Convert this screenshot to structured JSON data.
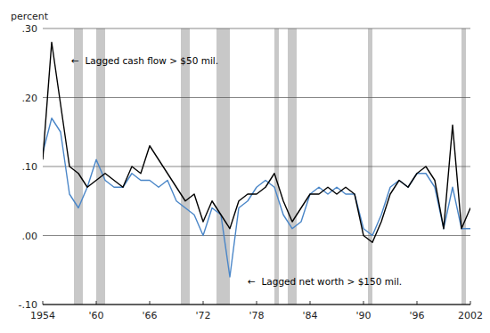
{
  "chart_data": {
    "type": "line",
    "x": [
      1954,
      1955,
      1956,
      1957,
      1958,
      1959,
      1960,
      1961,
      1962,
      1963,
      1964,
      1965,
      1966,
      1967,
      1968,
      1969,
      1970,
      1971,
      1972,
      1973,
      1974,
      1975,
      1976,
      1977,
      1978,
      1979,
      1980,
      1981,
      1982,
      1983,
      1984,
      1985,
      1986,
      1987,
      1988,
      1989,
      1990,
      1991,
      1992,
      1993,
      1994,
      1995,
      1996,
      1997,
      1998,
      1999,
      2000,
      2001,
      2002
    ],
    "series": [
      {
        "color": "#4a86c8",
        "values": [
          0.12,
          0.17,
          0.15,
          0.06,
          0.04,
          0.07,
          0.11,
          0.08,
          0.07,
          0.07,
          0.09,
          0.08,
          0.08,
          0.07,
          0.08,
          0.05,
          0.04,
          0.03,
          0.0,
          0.04,
          0.03,
          -0.06,
          0.04,
          0.05,
          0.07,
          0.08,
          0.07,
          0.03,
          0.01,
          0.02,
          0.06,
          0.07,
          0.06,
          0.07,
          0.06,
          0.06,
          0.01,
          0.0,
          0.03,
          0.07,
          0.08,
          0.07,
          0.09,
          0.09,
          0.07,
          0.01,
          0.07,
          0.01,
          0.01
        ]
      },
      {
        "color": "#000000",
        "values": [
          0.11,
          0.28,
          0.19,
          0.1,
          0.09,
          0.07,
          0.08,
          0.09,
          0.08,
          0.07,
          0.1,
          0.09,
          0.13,
          0.11,
          0.09,
          0.07,
          0.05,
          0.06,
          0.02,
          0.05,
          0.03,
          0.01,
          0.05,
          0.06,
          0.06,
          0.07,
          0.09,
          0.05,
          0.02,
          0.04,
          0.06,
          0.06,
          0.07,
          0.06,
          0.07,
          0.06,
          0.0,
          -0.01,
          0.02,
          0.06,
          0.08,
          0.07,
          0.09,
          0.1,
          0.08,
          0.01,
          0.16,
          0.01,
          0.04
        ]
      }
    ],
    "bands": {
      "color": "#c8c8c8",
      "ranges": [
        [
          1957.5,
          1958.5
        ],
        [
          1960.0,
          1961.0
        ],
        [
          1969.5,
          1970.5
        ],
        [
          1973.5,
          1975.0
        ],
        [
          1980.0,
          1980.5
        ],
        [
          1981.5,
          1982.5
        ],
        [
          1990.5,
          1991.0
        ],
        [
          2001.0,
          2001.5
        ]
      ]
    },
    "annotations": [
      {
        "x": 1957.2,
        "y": 0.252,
        "text": "←  Lagged cash flow > $50 mil."
      },
      {
        "x": 1977.0,
        "y": -0.068,
        "text": "←  Lagged net worth > $150 mil."
      }
    ],
    "ylabel": "percent",
    "ylim": [
      -0.1,
      0.3
    ],
    "yticks": [
      {
        "value": -0.1,
        "label": "-.10"
      },
      {
        "value": 0.0,
        "label": ".00"
      },
      {
        "value": 0.1,
        "label": ".10"
      },
      {
        "value": 0.2,
        "label": ".20"
      },
      {
        "value": 0.3,
        "label": ".30"
      }
    ],
    "xlim": [
      1954,
      2002
    ],
    "xticks": [
      1954,
      {
        "value": 1960,
        "label": "'60"
      },
      {
        "value": 1966,
        "label": "'66"
      },
      {
        "value": 1972,
        "label": "'72"
      },
      {
        "value": 1978,
        "label": "'78"
      },
      {
        "value": 1984,
        "label": "'84"
      },
      {
        "value": 1990,
        "label": "'90"
      },
      {
        "value": 1996,
        "label": "'96"
      },
      2002
    ],
    "grid": "y"
  }
}
